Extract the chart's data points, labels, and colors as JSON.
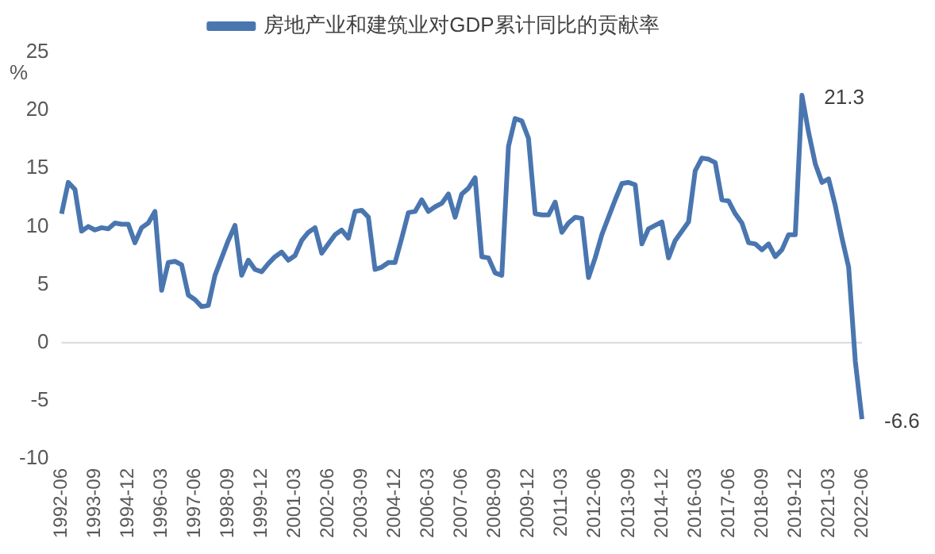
{
  "chart_data": {
    "type": "line",
    "ylabel": "%",
    "legend": "top",
    "grid": false,
    "marker": "none",
    "line_style": "solid",
    "categories": [
      "1992-06",
      null,
      null,
      null,
      null,
      "1993-09",
      null,
      null,
      null,
      null,
      "1994-12",
      null,
      null,
      null,
      null,
      "1996-03",
      null,
      null,
      null,
      null,
      "1997-06",
      null,
      null,
      null,
      null,
      "1998-09",
      null,
      null,
      null,
      null,
      "1999-12",
      null,
      null,
      null,
      null,
      "2001-03",
      null,
      null,
      null,
      null,
      "2002-06",
      null,
      null,
      null,
      null,
      "2003-09",
      null,
      null,
      null,
      null,
      "2004-12",
      null,
      null,
      null,
      null,
      "2006-03",
      null,
      null,
      null,
      null,
      "2007-06",
      null,
      null,
      null,
      null,
      "2008-09",
      null,
      null,
      null,
      null,
      "2009-12",
      null,
      null,
      null,
      null,
      "2011-03",
      null,
      null,
      null,
      null,
      "2012-06",
      null,
      null,
      null,
      null,
      "2013-09",
      null,
      null,
      null,
      null,
      "2014-12",
      null,
      null,
      null,
      null,
      "2016-03",
      null,
      null,
      null,
      null,
      "2017-06",
      null,
      null,
      null,
      null,
      "2018-09",
      null,
      null,
      null,
      null,
      "2019-12",
      null,
      null,
      null,
      null,
      "2021-03",
      null,
      null,
      null,
      null,
      "2022-06"
    ],
    "series": [
      {
        "name": "房地产业和建筑业对GDP累计同比的贡献率",
        "color": "#4a76b0",
        "values": [
          11.1,
          13.8,
          13.2,
          9.6,
          10.0,
          9.7,
          9.9,
          9.8,
          10.3,
          10.2,
          10.2,
          8.6,
          9.9,
          10.3,
          11.3,
          4.5,
          6.9,
          7.0,
          6.7,
          4.1,
          3.7,
          3.1,
          3.2,
          5.8,
          7.3,
          8.8,
          10.1,
          5.8,
          7.1,
          6.3,
          6.1,
          6.8,
          7.4,
          7.8,
          7.1,
          7.5,
          8.8,
          9.5,
          9.9,
          7.7,
          8.5,
          9.3,
          9.7,
          9.0,
          11.3,
          11.4,
          10.8,
          6.3,
          6.5,
          6.9,
          6.9,
          9.0,
          11.2,
          11.3,
          12.3,
          11.3,
          11.7,
          12.0,
          12.8,
          10.8,
          12.8,
          13.3,
          14.2,
          7.4,
          7.3,
          6.0,
          5.8,
          16.9,
          19.3,
          19.1,
          17.6,
          11.1,
          11.0,
          11.0,
          12.1,
          9.5,
          10.3,
          10.8,
          10.7,
          5.6,
          7.3,
          9.3,
          10.8,
          12.3,
          13.7,
          13.8,
          13.6,
          8.5,
          9.8,
          10.1,
          10.4,
          7.3,
          8.8,
          9.6,
          10.4,
          14.8,
          15.9,
          15.8,
          15.5,
          12.3,
          12.2,
          11.1,
          10.3,
          8.6,
          8.5,
          8.0,
          8.5,
          7.4,
          8.0,
          9.3,
          9.3,
          21.3,
          18.1,
          15.4,
          13.8,
          14.1,
          11.8,
          9.0,
          6.5,
          -1.6,
          -6.6
        ],
        "value_labels": [
          null,
          null,
          null,
          null,
          null,
          null,
          null,
          null,
          null,
          null,
          null,
          null,
          null,
          null,
          null,
          null,
          null,
          null,
          null,
          null,
          null,
          null,
          null,
          null,
          null,
          null,
          null,
          null,
          null,
          null,
          null,
          null,
          null,
          null,
          null,
          null,
          null,
          null,
          null,
          null,
          null,
          null,
          null,
          null,
          null,
          null,
          null,
          null,
          null,
          null,
          null,
          null,
          null,
          null,
          null,
          null,
          null,
          null,
          null,
          null,
          null,
          null,
          null,
          null,
          null,
          null,
          null,
          null,
          null,
          null,
          null,
          null,
          null,
          null,
          null,
          null,
          null,
          null,
          null,
          null,
          null,
          null,
          null,
          null,
          null,
          null,
          null,
          null,
          null,
          null,
          null,
          null,
          null,
          null,
          null,
          null,
          null,
          null,
          null,
          null,
          null,
          null,
          null,
          null,
          null,
          null,
          null,
          null,
          null,
          null,
          null,
          "21.3",
          null,
          null,
          null,
          null,
          null,
          null,
          null,
          null,
          "-6.6"
        ]
      }
    ],
    "ylim": [
      -10,
      25
    ],
    "yticks": [
      -10,
      -5,
      0,
      5,
      10,
      15,
      20,
      25
    ],
    "ref_lines": [
      {
        "axis": "y",
        "value": 0,
        "color": "#d9d9d9"
      }
    ]
  }
}
